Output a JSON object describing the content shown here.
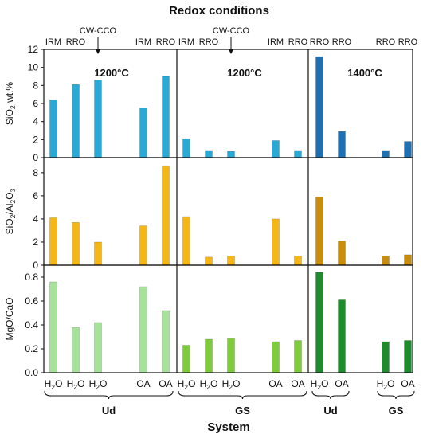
{
  "chart_data": {
    "type": "bar",
    "title": "Redox conditions",
    "xlabel": "System",
    "column_groups": [
      {
        "temperature": "1200°C",
        "system": "Ud",
        "bars": [
          {
            "redox": "IRM",
            "x": "H2O"
          },
          {
            "redox": "RRO",
            "x": "H2O"
          },
          {
            "redox": "CW-CCO",
            "x": "H2O"
          },
          {
            "redox": "IRM",
            "x": "OA"
          },
          {
            "redox": "RRO",
            "x": "OA"
          }
        ]
      },
      {
        "temperature": "1200°C",
        "system": "GS",
        "bars": [
          {
            "redox": "IRM",
            "x": "H2O"
          },
          {
            "redox": "RRO",
            "x": "H2O"
          },
          {
            "redox": "CW-CCO",
            "x": "H2O"
          },
          {
            "redox": "IRM",
            "x": "OA"
          },
          {
            "redox": "RRO",
            "x": "OA"
          }
        ]
      },
      {
        "temperature": "1400°C",
        "system": "Ud",
        "bars": [
          {
            "redox": "RRO",
            "x": "H2O"
          },
          {
            "redox": "RRO",
            "x": "OA"
          }
        ]
      },
      {
        "temperature": "1400°C",
        "system": "GS",
        "bars": [
          {
            "redox": "RRO",
            "x": "H2O"
          },
          {
            "redox": "RRO",
            "x": "OA"
          }
        ]
      }
    ],
    "panels": [
      {
        "ylabel": "SiO2 wt.%",
        "ylim": [
          0,
          12
        ],
        "yticks": [
          "0",
          "2",
          "4",
          "6",
          "8",
          "10",
          "12"
        ],
        "colors": [
          "#29a9d6",
          "#29a9d6",
          "#1f6fb3",
          "#1f6fb3"
        ],
        "values": [
          [
            6.4,
            8.1,
            8.6,
            5.5,
            9.0
          ],
          [
            2.1,
            0.8,
            0.7,
            1.9,
            0.8
          ],
          [
            11.2,
            2.9
          ],
          [
            0.8,
            1.8
          ]
        ]
      },
      {
        "ylabel": "SiO2/Al2O3",
        "ylim": [
          0,
          9.3
        ],
        "yticks": [
          "0",
          "2",
          "4",
          "6",
          "8"
        ],
        "colors": [
          "#f5b716",
          "#f5b716",
          "#c98d0c",
          "#c98d0c"
        ],
        "values": [
          [
            4.1,
            3.7,
            2.0,
            3.4,
            8.6
          ],
          [
            4.2,
            0.7,
            0.8,
            4.0,
            0.8
          ],
          [
            5.9,
            2.1
          ],
          [
            0.8,
            0.9
          ]
        ]
      },
      {
        "ylabel": "MgO/CaO",
        "ylim": [
          0,
          0.9
        ],
        "yticks": [
          "0.0",
          "0.2",
          "0.4",
          "0.6",
          "0.8"
        ],
        "colors": [
          "#a6e29a",
          "#7fcc3a",
          "#1e8c2c",
          "#1e8c2c"
        ],
        "values": [
          [
            0.76,
            0.38,
            0.42,
            0.72,
            0.52
          ],
          [
            0.23,
            0.28,
            0.29,
            0.26,
            0.27
          ],
          [
            0.84,
            0.61
          ],
          [
            0.26,
            0.27
          ]
        ]
      }
    ]
  }
}
